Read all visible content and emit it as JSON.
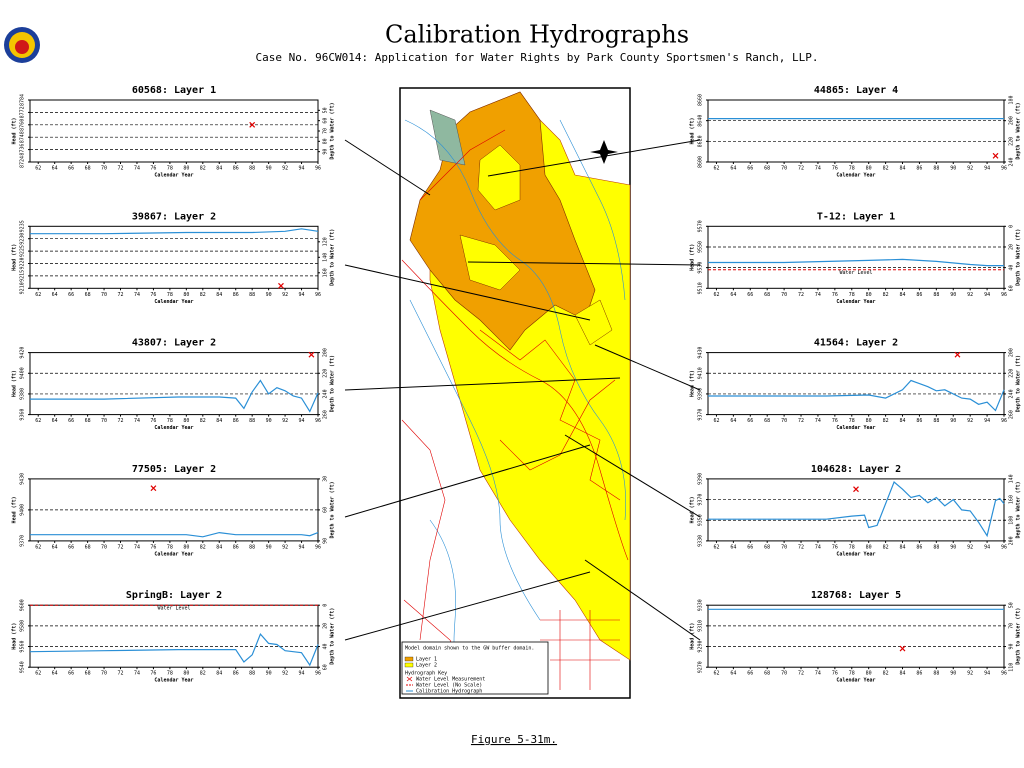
{
  "header": {
    "title": "Calibration Hydrographs",
    "subtitle": "Case No. 96CW014: Application for Water Rights by Park County Sportsmen's Ranch, LLP."
  },
  "footer": {
    "caption": "Figure 5-31m."
  },
  "map": {
    "note": "Model domain shown to the GW buffer domain.",
    "layers": [
      {
        "label": "Layer 1",
        "color": "#f0a000"
      },
      {
        "label": "Layer 2",
        "color": "#ffff00"
      }
    ],
    "key_title": "Hydrograph Key",
    "key": [
      {
        "label": "Water Level Measurement",
        "color": "#e00000"
      },
      {
        "label": "Water Level (No Scale)",
        "color": "#e00000"
      },
      {
        "label": "Calibration Hydrograph",
        "color": "#2a8fd6"
      }
    ]
  },
  "chart_data": [
    {
      "type": "line",
      "title": "60568: Layer 1",
      "xlabel": "Calendar Year",
      "ylabel": "Head (ft)",
      "y2label": "Depth to Water (ft)",
      "xlim": [
        61,
        96
      ],
      "xticks": [
        62,
        64,
        66,
        68,
        70,
        72,
        74,
        76,
        78,
        80,
        82,
        84,
        86,
        88,
        90,
        92,
        94,
        96
      ],
      "ylim": [
        8724,
        8784
      ],
      "yticks": [
        8724,
        8736,
        8748,
        8760,
        8772,
        8784
      ],
      "y2lim": [
        100,
        40
      ],
      "y2ticks": [
        50,
        60,
        70,
        80,
        90
      ],
      "series": [
        {
          "style": "marker",
          "color": "#e00000",
          "x": [
            88
          ],
          "values": [
            8760
          ]
        }
      ]
    },
    {
      "type": "line",
      "title": "39867: Layer 2",
      "xlabel": "Calendar Year",
      "ylabel": "Head (ft)",
      "y2label": "Depth to Water (ft)",
      "xlim": [
        61,
        96
      ],
      "xticks": [
        62,
        64,
        66,
        68,
        70,
        72,
        74,
        76,
        78,
        80,
        82,
        84,
        86,
        88,
        90,
        92,
        94,
        96
      ],
      "ylim": [
        9210,
        9235
      ],
      "yticks": [
        9210,
        9215,
        9220,
        9225,
        9230,
        9235
      ],
      "y2lim": [
        180,
        100
      ],
      "y2ticks": [
        120,
        140,
        160
      ],
      "series": [
        {
          "style": "line",
          "color": "#2a8fd6",
          "x": [
            61,
            70,
            80,
            88,
            92,
            94,
            96
          ],
          "values": [
            9232,
            9232,
            9232.5,
            9232.5,
            9233,
            9234,
            9233
          ]
        },
        {
          "style": "marker",
          "color": "#e00000",
          "x": [
            91.5
          ],
          "values": [
            9211
          ]
        }
      ]
    },
    {
      "type": "line",
      "title": "43807: Layer 2",
      "xlabel": "Calendar Year",
      "ylabel": "Head (ft)",
      "y2label": "Depth to Water (ft)",
      "xlim": [
        61,
        96
      ],
      "xticks": [
        62,
        64,
        66,
        68,
        70,
        72,
        74,
        76,
        78,
        80,
        82,
        84,
        86,
        88,
        90,
        92,
        94,
        96
      ],
      "ylim": [
        9360,
        9420
      ],
      "yticks": [
        9360,
        9380,
        9400,
        9420
      ],
      "y2lim": [
        260,
        200
      ],
      "y2ticks": [
        200,
        220,
        240,
        260
      ],
      "series": [
        {
          "style": "line",
          "color": "#2a8fd6",
          "x": [
            61,
            70,
            79,
            84,
            86,
            87,
            88,
            89,
            90,
            91,
            92,
            93,
            94,
            95,
            96
          ],
          "values": [
            9375,
            9375,
            9377,
            9377,
            9376,
            9366,
            9382,
            9393,
            9380,
            9386,
            9383,
            9378,
            9376,
            9363,
            9381
          ]
        },
        {
          "style": "marker",
          "color": "#e00000",
          "x": [
            95.2
          ],
          "values": [
            9418
          ]
        }
      ]
    },
    {
      "type": "line",
      "title": "77505: Layer 2",
      "xlabel": "Calendar Year",
      "ylabel": "Head (ft)",
      "y2label": "Depth to Water (ft)",
      "xlim": [
        61,
        96
      ],
      "xticks": [
        62,
        64,
        66,
        68,
        70,
        72,
        74,
        76,
        78,
        80,
        82,
        84,
        86,
        88,
        90,
        92,
        94,
        96
      ],
      "ylim": [
        9370,
        9430
      ],
      "yticks": [
        9370,
        9400,
        9430
      ],
      "y2lim": [
        90,
        30
      ],
      "y2ticks": [
        30,
        60,
        90
      ],
      "series": [
        {
          "style": "line",
          "color": "#2a8fd6",
          "x": [
            61,
            75,
            80,
            82,
            84,
            86,
            90,
            94,
            95,
            96
          ],
          "values": [
            9376,
            9376,
            9376,
            9374,
            9378,
            9376,
            9376,
            9376,
            9375,
            9378
          ]
        },
        {
          "style": "marker",
          "color": "#e00000",
          "x": [
            76
          ],
          "values": [
            9421
          ]
        }
      ]
    },
    {
      "type": "line",
      "title": "SpringB: Layer 2",
      "xlabel": "Calendar Year",
      "ylabel": "Head (ft)",
      "y2label": "Depth to Water (ft)",
      "xlim": [
        61,
        96
      ],
      "xticks": [
        62,
        64,
        66,
        68,
        70,
        72,
        74,
        76,
        78,
        80,
        82,
        84,
        86,
        88,
        90,
        92,
        94,
        96
      ],
      "ylim": [
        9540,
        9600
      ],
      "yticks": [
        9540,
        9560,
        9580,
        9600
      ],
      "y2lim": [
        60,
        0
      ],
      "y2ticks": [
        0,
        20,
        40,
        60
      ],
      "water_level": {
        "value": 9600,
        "label": "Water Level",
        "color": "#e00000"
      },
      "series": [
        {
          "style": "line",
          "color": "#2a8fd6",
          "x": [
            61,
            70,
            79,
            84,
            86,
            87,
            88,
            89,
            90,
            91,
            92,
            93,
            94,
            95,
            96
          ],
          "values": [
            9555,
            9556,
            9557,
            9557,
            9557,
            9545,
            9552,
            9572,
            9563,
            9562,
            9556,
            9555,
            9554,
            9542,
            9562
          ]
        }
      ]
    },
    {
      "type": "line",
      "title": "44865: Layer 4",
      "xlabel": "Calendar Year",
      "ylabel": "Head (ft)",
      "y2label": "Depth to Water (ft)",
      "xlim": [
        61,
        96
      ],
      "xticks": [
        62,
        64,
        66,
        68,
        70,
        72,
        74,
        76,
        78,
        80,
        82,
        84,
        86,
        88,
        90,
        92,
        94,
        96
      ],
      "ylim": [
        8600,
        8660
      ],
      "yticks": [
        8600,
        8620,
        8640,
        8660
      ],
      "y2lim": [
        240,
        180
      ],
      "y2ticks": [
        180,
        200,
        220,
        240
      ],
      "series": [
        {
          "style": "line",
          "color": "#2a8fd6",
          "x": [
            61,
            96
          ],
          "values": [
            8642,
            8642
          ]
        },
        {
          "style": "marker",
          "color": "#e00000",
          "x": [
            95
          ],
          "values": [
            8606
          ]
        }
      ]
    },
    {
      "type": "line",
      "title": "T-12: Layer 1",
      "xlabel": "Calendar Year",
      "ylabel": "Head (ft)",
      "y2label": "Depth to Water (ft)",
      "xlim": [
        61,
        96
      ],
      "xticks": [
        62,
        64,
        66,
        68,
        70,
        72,
        74,
        76,
        78,
        80,
        82,
        84,
        86,
        88,
        90,
        92,
        94,
        96
      ],
      "ylim": [
        9510,
        9570
      ],
      "yticks": [
        9510,
        9530,
        9550,
        9570
      ],
      "y2lim": [
        60,
        0
      ],
      "y2ticks": [
        0,
        20,
        40,
        60
      ],
      "water_level": {
        "value": 9528,
        "label": "Water Level",
        "color": "#e00000"
      },
      "series": [
        {
          "style": "line",
          "color": "#2a8fd6",
          "x": [
            61,
            70,
            80,
            84,
            88,
            92,
            94,
            96
          ],
          "values": [
            9535,
            9535,
            9537,
            9538,
            9536,
            9533,
            9532,
            9532
          ]
        }
      ]
    },
    {
      "type": "line",
      "title": "41564: Layer 2",
      "xlabel": "Calendar Year",
      "ylabel": "Head (ft)",
      "y2label": "Depth to Water (ft)",
      "xlim": [
        61,
        96
      ],
      "xticks": [
        62,
        64,
        66,
        68,
        70,
        72,
        74,
        76,
        78,
        80,
        82,
        84,
        86,
        88,
        90,
        92,
        94,
        96
      ],
      "ylim": [
        9370,
        9430
      ],
      "yticks": [
        9370,
        9390,
        9410,
        9430
      ],
      "y2lim": [
        260,
        200
      ],
      "y2ticks": [
        200,
        220,
        240,
        260
      ],
      "series": [
        {
          "style": "line",
          "color": "#2a8fd6",
          "x": [
            61,
            75,
            80,
            82,
            84,
            85,
            86,
            87,
            88,
            89,
            90,
            91,
            92,
            93,
            94,
            95,
            96
          ],
          "values": [
            9388,
            9388,
            9389,
            9386,
            9394,
            9403,
            9400,
            9397,
            9393,
            9394,
            9390,
            9386,
            9385,
            9380,
            9382,
            9374,
            9394
          ]
        },
        {
          "style": "marker",
          "color": "#e00000",
          "x": [
            90.5
          ],
          "values": [
            9428
          ]
        }
      ]
    },
    {
      "type": "line",
      "title": "104628: Layer 2",
      "xlabel": "Calendar Year",
      "ylabel": "Head (ft)",
      "y2label": "Depth to Water (ft)",
      "xlim": [
        61,
        96
      ],
      "xticks": [
        62,
        64,
        66,
        68,
        70,
        72,
        74,
        76,
        78,
        80,
        82,
        84,
        86,
        88,
        90,
        92,
        94,
        96
      ],
      "ylim": [
        9330,
        9390
      ],
      "yticks": [
        9330,
        9350,
        9370,
        9390
      ],
      "y2lim": [
        200,
        140
      ],
      "y2ticks": [
        140,
        160,
        180,
        200
      ],
      "series": [
        {
          "style": "line",
          "color": "#2a8fd6",
          "x": [
            61,
            75,
            78,
            79.5,
            80,
            81,
            83,
            84,
            85,
            86,
            87,
            88,
            89,
            90,
            91,
            92,
            93,
            94,
            95,
            95.5,
            96
          ],
          "values": [
            9351,
            9351,
            9354,
            9355,
            9343,
            9345,
            9387,
            9380,
            9372,
            9374,
            9367,
            9372,
            9364,
            9370,
            9360,
            9359,
            9348,
            9335,
            9369,
            9371,
            9366
          ]
        },
        {
          "style": "marker",
          "color": "#e00000",
          "x": [
            78.5
          ],
          "values": [
            9380
          ]
        }
      ]
    },
    {
      "type": "line",
      "title": "128768: Layer 5",
      "xlabel": "Calendar Year",
      "ylabel": "Head (ft)",
      "y2label": "Depth to Water (ft)",
      "xlim": [
        61,
        96
      ],
      "xticks": [
        62,
        64,
        66,
        68,
        70,
        72,
        74,
        76,
        78,
        80,
        82,
        84,
        86,
        88,
        90,
        92,
        94,
        96
      ],
      "ylim": [
        9270,
        9330
      ],
      "yticks": [
        9270,
        9290,
        9310,
        9330
      ],
      "y2lim": [
        110,
        50
      ],
      "y2ticks": [
        50,
        70,
        90,
        110
      ],
      "series": [
        {
          "style": "line",
          "color": "#2a8fd6",
          "x": [
            61,
            96
          ],
          "values": [
            9326,
            9326
          ]
        },
        {
          "style": "marker",
          "color": "#e00000",
          "x": [
            84
          ],
          "values": [
            9288
          ]
        }
      ]
    }
  ]
}
